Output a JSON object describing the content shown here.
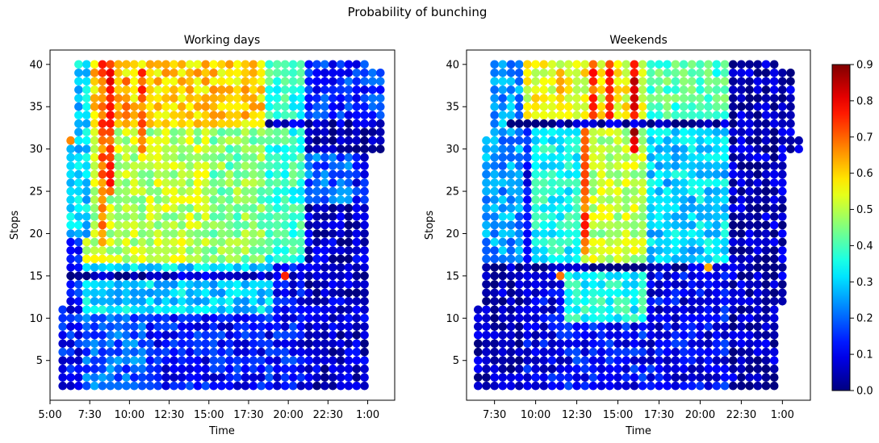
{
  "figure": {
    "suptitle": "Probability of bunching"
  },
  "colorbar": {
    "colormap": "jet",
    "min": 0.0,
    "max": 0.9,
    "ticks": [
      0.0,
      0.1,
      0.2,
      0.3,
      0.4,
      0.5,
      0.6,
      0.7,
      0.8,
      0.9
    ],
    "tick_labels": [
      "0.0",
      "0.1",
      "0.2",
      "0.3",
      "0.4",
      "0.5",
      "0.6",
      "0.7",
      "0.8",
      "0.9"
    ]
  },
  "chart_data": [
    {
      "type": "scatter",
      "title": "Working days",
      "xlabel": "Time",
      "ylabel": "Stops",
      "x_unit": "hours since midnight",
      "xlim": [
        5.0,
        26.7
      ],
      "ylim": [
        0.3,
        41.7
      ],
      "xticks": [
        5.0,
        7.5,
        10.0,
        12.5,
        15.0,
        17.5,
        20.0,
        22.5,
        25.0
      ],
      "xtick_labels": [
        "5:00",
        "7:30",
        "10:00",
        "12:30",
        "15:00",
        "17:30",
        "20:00",
        "22:30",
        "1:00"
      ],
      "yticks": [
        5,
        10,
        15,
        20,
        25,
        30,
        35,
        40
      ],
      "ytick_labels": [
        "5",
        "10",
        "15",
        "20",
        "25",
        "30",
        "35",
        "40"
      ],
      "time_start": 5.8,
      "time_step": 0.5,
      "stop_min": 2,
      "stop_max": 40,
      "point_color_value": "probability of bunching",
      "row_coverage": [
        {
          "stops": [
            2,
            11
          ],
          "from": 5.8,
          "to": 24.8
        },
        {
          "stops": [
            12,
            29
          ],
          "from": 6.3,
          "to": 24.8
        },
        {
          "stops": [
            30,
            31
          ],
          "from": 6.3,
          "to": 25.8
        },
        {
          "stops": [
            32,
            39
          ],
          "from": 6.8,
          "to": 25.8
        },
        {
          "stops": [
            40,
            40
          ],
          "from": 6.8,
          "to": 24.8
        }
      ],
      "regions": [
        {
          "t": [
            7.3,
            18.8
          ],
          "s": [
            33,
            40
          ],
          "v": 0.6
        },
        {
          "t": [
            7.3,
            15.3
          ],
          "s": [
            17,
            32
          ],
          "v": 0.5
        },
        {
          "t": [
            15.3,
            18.8
          ],
          "s": [
            17,
            32
          ],
          "v": 0.45
        },
        {
          "t": [
            18.8,
            21.3
          ],
          "s": [
            17,
            40
          ],
          "v": 0.38
        },
        {
          "t": [
            6.3,
            7.3
          ],
          "s": [
            20,
            40
          ],
          "v": 0.3
        },
        {
          "t": [
            7.3,
            18.8
          ],
          "s": [
            11,
            16
          ],
          "v": 0.3
        },
        {
          "t": [
            7.3,
            10.8
          ],
          "s": [
            2,
            10
          ],
          "v": 0.2
        },
        {
          "t": [
            21.3,
            23.8
          ],
          "s": [
            24,
            40
          ],
          "v": 0.2
        },
        {
          "t": [
            21.3,
            25.8
          ],
          "s": [
            33,
            40
          ],
          "v": 0.15
        },
        {
          "t": [
            21.3,
            26.0
          ],
          "s": [
            2,
            23
          ],
          "v": 0.06
        },
        {
          "t": [
            21.3,
            26.0
          ],
          "s": [
            30,
            33
          ],
          "v": 0.04
        }
      ],
      "hot_columns": [
        {
          "t": 8.3,
          "s": [
            19,
            40
          ],
          "v": 0.7
        },
        {
          "t": 8.8,
          "s": [
            25,
            40
          ],
          "v": 0.75
        },
        {
          "t": 9.8,
          "s": [
            33,
            38
          ],
          "v": 0.65
        },
        {
          "t": 10.8,
          "s": [
            30,
            39
          ],
          "v": 0.7
        }
      ],
      "cold_rows": [
        {
          "s": 15,
          "t": [
            6.3,
            21.8
          ],
          "v": 0.05
        },
        {
          "s": 33,
          "t": [
            18.8,
            26.0
          ],
          "v": 0.05
        }
      ],
      "highlights": [
        {
          "t": 19.8,
          "s": 15,
          "v": 0.75
        },
        {
          "t": 6.3,
          "s": 31,
          "v": 0.6
        }
      ]
    },
    {
      "type": "scatter",
      "title": "Weekends",
      "xlabel": "Time",
      "ylabel": "Stops",
      "x_unit": "hours since midnight",
      "xlim": [
        5.8,
        26.7
      ],
      "ylim": [
        0.3,
        41.7
      ],
      "xticks": [
        7.5,
        10.0,
        12.5,
        15.0,
        17.5,
        20.0,
        22.5,
        25.0
      ],
      "xtick_labels": [
        "7:30",
        "10:00",
        "12:30",
        "15:00",
        "17:30",
        "20:00",
        "22:30",
        "1:00"
      ],
      "yticks": [
        5,
        10,
        15,
        20,
        25,
        30,
        35,
        40
      ],
      "ytick_labels": [
        "5",
        "10",
        "15",
        "20",
        "25",
        "30",
        "35",
        "40"
      ],
      "time_start": 6.5,
      "time_step": 0.5,
      "stop_min": 2,
      "stop_max": 40,
      "point_color_value": "probability of bunching",
      "row_coverage": [
        {
          "stops": [
            2,
            11
          ],
          "from": 6.5,
          "to": 24.5
        },
        {
          "stops": [
            12,
            29
          ],
          "from": 7.0,
          "to": 25.0
        },
        {
          "stops": [
            30,
            31
          ],
          "from": 7.0,
          "to": 26.0
        },
        {
          "stops": [
            32,
            39
          ],
          "from": 7.5,
          "to": 25.5
        },
        {
          "stops": [
            40,
            40
          ],
          "from": 7.5,
          "to": 24.5
        }
      ],
      "regions": [
        {
          "t": [
            9.0,
            17.0
          ],
          "s": [
            33,
            40
          ],
          "v": 0.55
        },
        {
          "t": [
            17.0,
            22.0
          ],
          "s": [
            33,
            40
          ],
          "v": 0.4
        },
        {
          "t": [
            12.5,
            17.0
          ],
          "s": [
            17,
            32
          ],
          "v": 0.5
        },
        {
          "t": [
            10.0,
            12.5
          ],
          "s": [
            17,
            32
          ],
          "v": 0.35
        },
        {
          "t": [
            17.0,
            22.0
          ],
          "s": [
            17,
            32
          ],
          "v": 0.3
        },
        {
          "t": [
            11.5,
            17.0
          ],
          "s": [
            10,
            16
          ],
          "v": 0.35
        },
        {
          "t": [
            7.0,
            9.0
          ],
          "s": [
            17,
            40
          ],
          "v": 0.25
        },
        {
          "t": [
            9.0,
            11.5
          ],
          "s": [
            2,
            16
          ],
          "v": 0.1
        },
        {
          "t": [
            17.0,
            21.0
          ],
          "s": [
            2,
            16
          ],
          "v": 0.1
        },
        {
          "t": [
            22.0,
            26.0
          ],
          "s": [
            2,
            40
          ],
          "v": 0.05
        },
        {
          "t": [
            6.5,
            9.0
          ],
          "s": [
            2,
            16
          ],
          "v": 0.04
        }
      ],
      "hot_columns": [
        {
          "t": 13.0,
          "s": [
            18,
            32
          ],
          "v": 0.72
        },
        {
          "t": 13.5,
          "s": [
            34,
            40
          ],
          "v": 0.72
        },
        {
          "t": 14.5,
          "s": [
            33,
            40
          ],
          "v": 0.75
        },
        {
          "t": 16.0,
          "s": [
            30,
            40
          ],
          "v": 0.82
        },
        {
          "t": 11.5,
          "s": [
            35,
            39
          ],
          "v": 0.65
        }
      ],
      "cold_rows": [
        {
          "s": 16,
          "t": [
            7.0,
            26.0
          ],
          "v": 0.04
        },
        {
          "s": 33,
          "t": [
            8.5,
            26.0
          ],
          "v": 0.04
        }
      ],
      "highlights": [
        {
          "t": 20.5,
          "s": 16,
          "v": 0.7
        },
        {
          "t": 11.5,
          "s": 15,
          "v": 0.65
        }
      ]
    }
  ]
}
